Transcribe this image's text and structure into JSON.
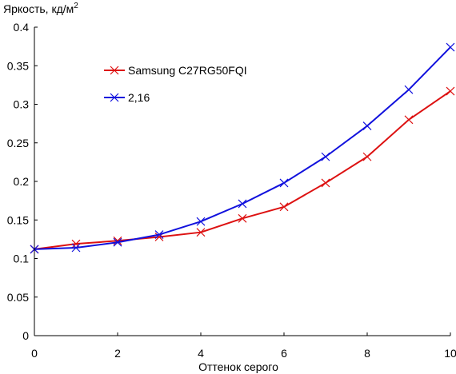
{
  "chart_data": {
    "type": "line",
    "title": "",
    "ylabel": "Яркость, кд/м",
    "ylabel_sup": "2",
    "xlabel": "Оттенок серого",
    "xlim": [
      0,
      10
    ],
    "ylim": [
      0,
      0.4
    ],
    "x_ticks": [
      0,
      2,
      4,
      6,
      8,
      10
    ],
    "x_tick_labels": [
      "0",
      "2",
      "4",
      "6",
      "8",
      "10"
    ],
    "y_ticks": [
      0,
      0.05,
      0.1,
      0.15,
      0.2,
      0.25,
      0.3,
      0.35,
      0.4
    ],
    "y_tick_labels": [
      "0",
      "0.05",
      "0.1",
      "0.15",
      "0.2",
      "0.25",
      "0.3",
      "0.35",
      "0.4"
    ],
    "grid": false,
    "legend_position": "top-left",
    "x": [
      0,
      1,
      2,
      3,
      4,
      5,
      6,
      7,
      8,
      9,
      10
    ],
    "series": [
      {
        "name": "Samsung C27RG50FQI",
        "color": "#dd1111",
        "marker": "x-mark",
        "values": [
          0.112,
          0.119,
          0.123,
          0.128,
          0.134,
          0.152,
          0.167,
          0.198,
          0.232,
          0.28,
          0.317
        ]
      },
      {
        "name": "2,16",
        "color": "#1111dd",
        "marker": "x-mark",
        "values": [
          0.112,
          0.114,
          0.121,
          0.131,
          0.148,
          0.171,
          0.198,
          0.232,
          0.272,
          0.319,
          0.374
        ]
      }
    ]
  }
}
